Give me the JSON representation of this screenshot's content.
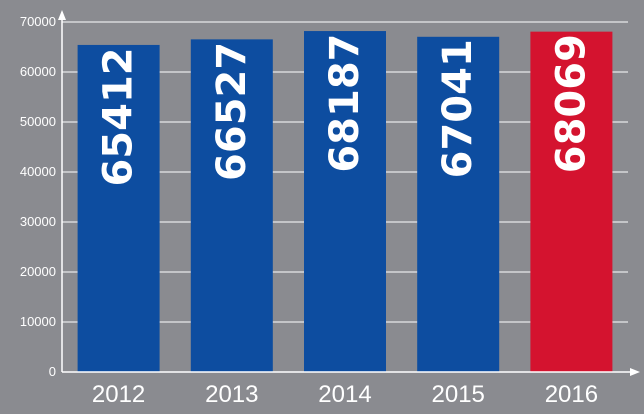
{
  "chart_data": {
    "type": "bar",
    "categories": [
      "2012",
      "2013",
      "2014",
      "2015",
      "2016"
    ],
    "values": [
      65412,
      66527,
      68187,
      67041,
      68069
    ],
    "data_labels": [
      "65412",
      "66527",
      "68187",
      "67041",
      "68069"
    ],
    "ylim": [
      0,
      70000
    ],
    "yticks": [
      "0",
      "10000",
      "20000",
      "30000",
      "40000",
      "50000",
      "60000",
      "70000"
    ],
    "grid": true,
    "title": "",
    "xlabel": "",
    "ylabel": ""
  },
  "colors": {
    "background": "#8a8b90",
    "bar": "#0d4da0",
    "highlight": "#d4132f",
    "grid": "#ffffff",
    "text": "#ffffff"
  },
  "highlight_index": 4
}
